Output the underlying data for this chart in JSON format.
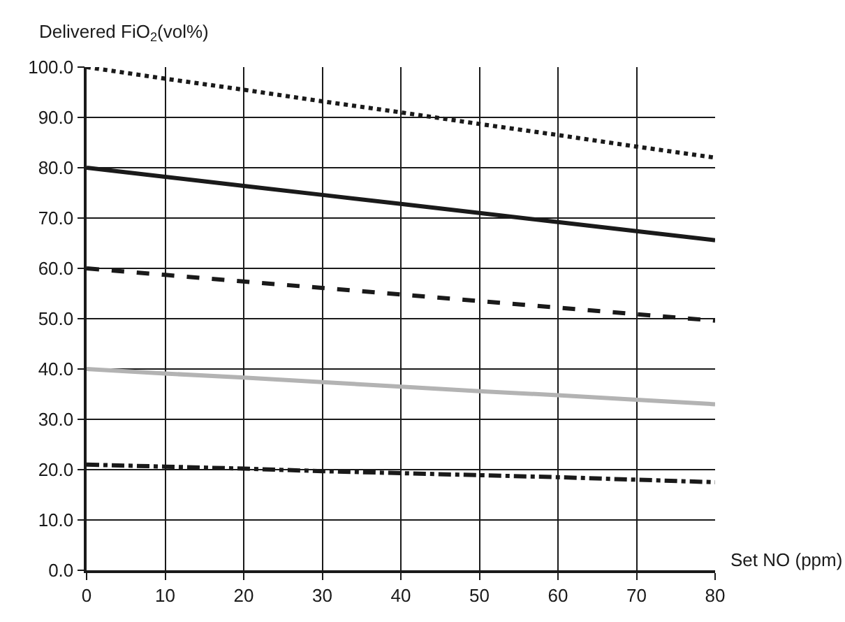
{
  "chart_data": {
    "type": "line",
    "xlabel": "Set NO (ppm)",
    "ylabel": "Delivered FiO$_{2}$(vol%)",
    "x": [
      0,
      10,
      20,
      30,
      40,
      50,
      60,
      70,
      80
    ],
    "series": [
      {
        "color": "#1a1a1a",
        "line_style": "dotted",
        "values": [
          100,
          97.7,
          95.5,
          93.2,
          91,
          88.7,
          86.5,
          84.2,
          82
        ]
      },
      {
        "color": "#1a1a1a",
        "line_style": "solid",
        "values": [
          80,
          78.2,
          76.4,
          74.6,
          72.8,
          71,
          69.2,
          67.4,
          65.6
        ]
      },
      {
        "color": "#1a1a1a",
        "line_style": "dashed",
        "values": [
          60,
          58.7,
          57.4,
          56.1,
          54.8,
          53.5,
          52.2,
          50.9,
          49.6
        ]
      },
      {
        "color": "#b3b3b3",
        "line_style": "solid",
        "values": [
          40,
          39.1,
          38.3,
          37.4,
          36.5,
          35.6,
          34.8,
          33.9,
          33
        ]
      },
      {
        "color": "#1a1a1a",
        "line_style": "dashdot",
        "values": [
          21,
          20.6,
          20.2,
          19.7,
          19.3,
          18.9,
          18.5,
          18,
          17.5
        ]
      }
    ],
    "xlim": [
      0,
      80
    ],
    "xticks": [
      0,
      10,
      20,
      30,
      40,
      50,
      60,
      70,
      80
    ],
    "ylim": [
      0,
      100
    ],
    "yticks": [
      {
        "value": 0,
        "label": "0.0"
      },
      {
        "value": 10,
        "label": "10.0"
      },
      {
        "value": 20,
        "label": "20.0"
      },
      {
        "value": 30,
        "label": "30.0"
      },
      {
        "value": 40,
        "label": "40.0"
      },
      {
        "value": 50,
        "label": "50.0"
      },
      {
        "value": 60,
        "label": "60.0"
      },
      {
        "value": 70,
        "label": "70.0"
      },
      {
        "value": 80,
        "label": "80.0"
      },
      {
        "value": 90,
        "label": "90.0"
      },
      {
        "value": 100,
        "label": "100.0"
      }
    ],
    "grid": true,
    "marker": "none"
  }
}
